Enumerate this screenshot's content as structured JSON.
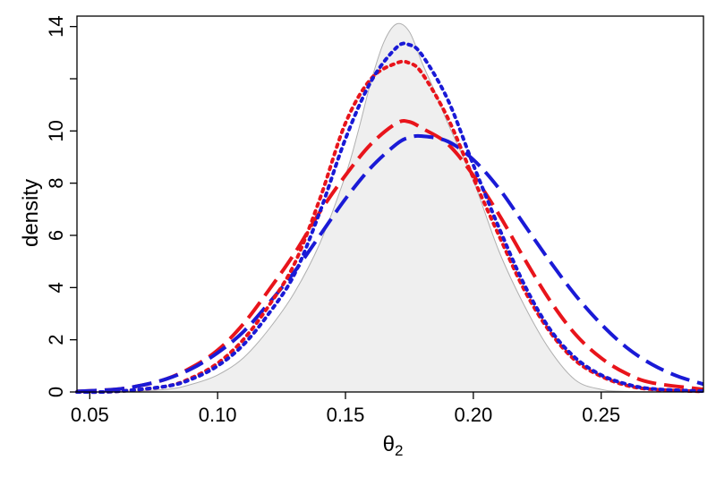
{
  "chart_data": {
    "type": "line",
    "title": "",
    "xlabel": "θ",
    "xlabel_subscript": "2",
    "ylabel": "density",
    "xlim": [
      0.045,
      0.29
    ],
    "ylim": [
      0,
      14.4
    ],
    "x_ticks": [
      0.05,
      0.1,
      0.15,
      0.2,
      0.25
    ],
    "x_tick_labels": [
      "0.05",
      "0.10",
      "0.15",
      "0.20",
      "0.25"
    ],
    "y_ticks": [
      0,
      2,
      4,
      6,
      8,
      10,
      12,
      14
    ],
    "y_tick_labels": [
      "0",
      "2",
      "4",
      "6",
      "8",
      "10",
      "",
      "14"
    ],
    "grid": false,
    "colors": {
      "shade_fill": "#efefef",
      "shade_line": "#b0b0b0",
      "red": "#e8141b",
      "blue": "#1a1ad6"
    },
    "series": [
      {
        "style": "shaded",
        "color": "#b0b0b0",
        "x": [
          0.045,
          0.06,
          0.08,
          0.09,
          0.1,
          0.11,
          0.12,
          0.13,
          0.14,
          0.15,
          0.155,
          0.16,
          0.165,
          0.17,
          0.175,
          0.18,
          0.185,
          0.19,
          0.2,
          0.21,
          0.22,
          0.23,
          0.24,
          0.25,
          0.26,
          0.29
        ],
        "y": [
          0,
          0.01,
          0.1,
          0.3,
          0.65,
          1.3,
          2.4,
          3.8,
          5.7,
          8.3,
          10.0,
          11.9,
          13.4,
          14.1,
          13.8,
          12.6,
          11.5,
          10.3,
          8.1,
          5.4,
          3.3,
          1.6,
          0.45,
          0.1,
          0.02,
          0
        ]
      },
      {
        "style": "dashed",
        "color": "#e8141b",
        "x": [
          0.045,
          0.06,
          0.07,
          0.08,
          0.09,
          0.1,
          0.11,
          0.12,
          0.13,
          0.14,
          0.15,
          0.16,
          0.17,
          0.175,
          0.18,
          0.19,
          0.2,
          0.21,
          0.22,
          0.23,
          0.24,
          0.25,
          0.26,
          0.27,
          0.29
        ],
        "y": [
          0.02,
          0.1,
          0.25,
          0.5,
          0.95,
          1.6,
          2.6,
          3.9,
          5.3,
          6.9,
          8.3,
          9.5,
          10.3,
          10.35,
          10.1,
          9.5,
          8.3,
          6.8,
          5.1,
          3.5,
          2.2,
          1.3,
          0.7,
          0.35,
          0.1
        ]
      },
      {
        "style": "dashed",
        "color": "#1a1ad6",
        "x": [
          0.045,
          0.06,
          0.07,
          0.08,
          0.09,
          0.1,
          0.11,
          0.12,
          0.13,
          0.14,
          0.15,
          0.16,
          0.17,
          0.175,
          0.18,
          0.19,
          0.2,
          0.21,
          0.22,
          0.23,
          0.24,
          0.25,
          0.26,
          0.27,
          0.28,
          0.29
        ],
        "y": [
          0.02,
          0.1,
          0.25,
          0.5,
          0.9,
          1.5,
          2.3,
          3.4,
          4.6,
          6.0,
          7.4,
          8.6,
          9.5,
          9.75,
          9.8,
          9.6,
          8.9,
          7.8,
          6.4,
          5.0,
          3.7,
          2.6,
          1.7,
          1.05,
          0.6,
          0.3
        ]
      },
      {
        "style": "dotted",
        "color": "#e8141b",
        "x": [
          0.045,
          0.06,
          0.08,
          0.09,
          0.1,
          0.11,
          0.12,
          0.13,
          0.14,
          0.15,
          0.16,
          0.17,
          0.175,
          0.18,
          0.19,
          0.2,
          0.21,
          0.22,
          0.23,
          0.24,
          0.25,
          0.26,
          0.27,
          0.29
        ],
        "y": [
          0,
          0.02,
          0.22,
          0.55,
          1.1,
          2.0,
          3.3,
          4.9,
          7.4,
          10.3,
          12.0,
          12.6,
          12.6,
          12.2,
          10.5,
          8.2,
          6.0,
          3.9,
          2.3,
          1.2,
          0.6,
          0.25,
          0.1,
          0.02
        ]
      },
      {
        "style": "dotted",
        "color": "#1a1ad6",
        "x": [
          0.045,
          0.06,
          0.08,
          0.09,
          0.1,
          0.11,
          0.12,
          0.13,
          0.14,
          0.15,
          0.16,
          0.17,
          0.175,
          0.18,
          0.19,
          0.2,
          0.21,
          0.22,
          0.23,
          0.24,
          0.25,
          0.26,
          0.27,
          0.29
        ],
        "y": [
          0,
          0.02,
          0.22,
          0.5,
          1.0,
          1.8,
          3.0,
          4.5,
          6.9,
          9.7,
          11.9,
          13.2,
          13.3,
          12.9,
          11.2,
          8.7,
          6.3,
          4.1,
          2.4,
          1.3,
          0.65,
          0.3,
          0.12,
          0.03
        ]
      }
    ]
  }
}
